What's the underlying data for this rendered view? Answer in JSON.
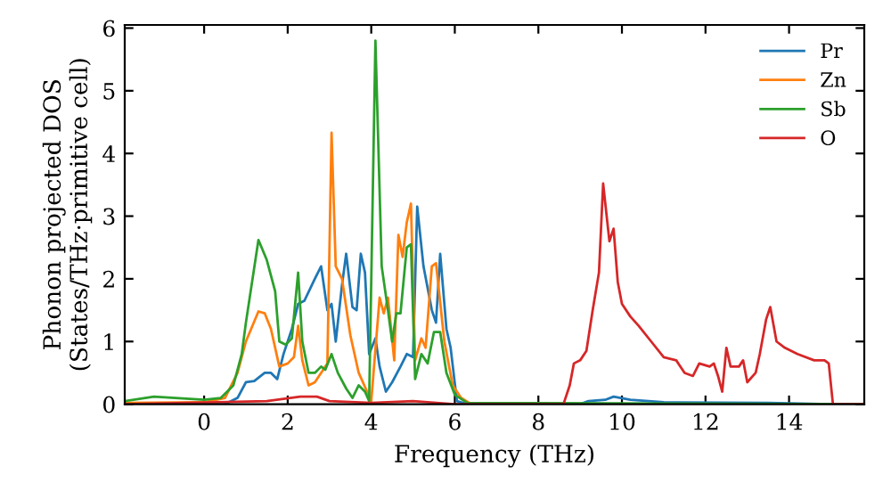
{
  "chart_data": {
    "type": "line",
    "xlabel": "Frequency (THz)",
    "ylabel": "Phonon projected DOS\n(States/THz·primitive cell)",
    "xlim": [
      -1.9,
      15.8
    ],
    "ylim": [
      0,
      6.05
    ],
    "xticks": [
      0,
      2,
      4,
      6,
      8,
      10,
      12,
      14
    ],
    "yticks": [
      0,
      1,
      2,
      3,
      4,
      5,
      6
    ],
    "grid": false,
    "legend": "top right",
    "marker": "none",
    "line_style": "solid",
    "series": [
      {
        "name": "Pr",
        "color": "#1f77b4",
        "x": [
          -1.9,
          0.5,
          0.8,
          1.0,
          1.2,
          1.45,
          1.6,
          1.75,
          1.9,
          2.1,
          2.25,
          2.4,
          2.65,
          2.8,
          2.95,
          3.05,
          3.15,
          3.3,
          3.4,
          3.55,
          3.65,
          3.75,
          3.85,
          3.95,
          4.1,
          4.2,
          4.35,
          4.5,
          4.7,
          4.85,
          5.0,
          5.1,
          5.25,
          5.45,
          5.55,
          5.65,
          5.8,
          5.9,
          6.05,
          6.3,
          9.0,
          9.2,
          9.6,
          9.8,
          10.2,
          11.0,
          13.5,
          15.0,
          15.8
        ],
        "values": [
          0,
          0,
          0.1,
          0.35,
          0.37,
          0.5,
          0.5,
          0.4,
          0.8,
          1.2,
          1.6,
          1.65,
          2.0,
          2.2,
          1.5,
          1.6,
          1.0,
          1.9,
          2.4,
          1.55,
          1.5,
          2.4,
          2.1,
          0.8,
          1.05,
          0.6,
          0.2,
          0.35,
          0.6,
          0.8,
          0.75,
          3.15,
          2.2,
          1.5,
          1.3,
          2.4,
          1.2,
          0.9,
          0.05,
          0,
          0,
          0.05,
          0.07,
          0.12,
          0.07,
          0.03,
          0.02,
          0,
          0
        ]
      },
      {
        "name": "Zn",
        "color": "#ff7f0e",
        "x": [
          -1.9,
          0,
          0.5,
          0.8,
          1.0,
          1.3,
          1.45,
          1.6,
          1.8,
          2.0,
          2.15,
          2.25,
          2.35,
          2.5,
          2.65,
          2.85,
          2.95,
          3.05,
          3.15,
          3.3,
          3.5,
          3.7,
          3.9,
          4.0,
          4.2,
          4.3,
          4.4,
          4.55,
          4.65,
          4.75,
          4.85,
          4.95,
          5.05,
          5.2,
          5.3,
          5.45,
          5.55,
          5.75,
          5.95,
          6.15,
          6.4,
          15.8
        ],
        "values": [
          0.02,
          0.03,
          0.1,
          0.5,
          1.0,
          1.48,
          1.45,
          1.2,
          0.6,
          0.65,
          0.75,
          1.25,
          0.7,
          0.3,
          0.35,
          0.55,
          0.65,
          4.33,
          2.2,
          2.0,
          1.1,
          0.5,
          0.2,
          0.05,
          1.7,
          1.45,
          1.7,
          0.7,
          2.7,
          2.35,
          2.9,
          3.2,
          0.7,
          1.05,
          0.9,
          2.2,
          2.25,
          1.0,
          0.3,
          0.1,
          0,
          0
        ]
      },
      {
        "name": "Sb",
        "color": "#2ca02c",
        "x": [
          -1.9,
          -1.2,
          0,
          0.4,
          0.7,
          0.9,
          1.0,
          1.3,
          1.5,
          1.7,
          1.8,
          1.95,
          2.1,
          2.25,
          2.35,
          2.5,
          2.65,
          2.8,
          2.9,
          3.05,
          3.2,
          3.4,
          3.55,
          3.7,
          3.85,
          3.95,
          4.1,
          4.25,
          4.4,
          4.5,
          4.6,
          4.7,
          4.85,
          4.95,
          5.05,
          5.2,
          5.35,
          5.5,
          5.65,
          5.8,
          6.0,
          6.3,
          15.8
        ],
        "values": [
          0.05,
          0.12,
          0.07,
          0.1,
          0.3,
          0.8,
          1.3,
          2.62,
          2.3,
          1.8,
          1.0,
          0.95,
          1.05,
          2.1,
          1.0,
          0.5,
          0.5,
          0.6,
          0.55,
          0.8,
          0.5,
          0.25,
          0.1,
          0.3,
          0.2,
          0.05,
          5.8,
          2.2,
          1.5,
          1.0,
          1.45,
          1.45,
          2.5,
          2.55,
          0.4,
          0.8,
          0.65,
          1.15,
          1.15,
          0.5,
          0.15,
          0.02,
          0
        ]
      },
      {
        "name": "O",
        "color": "#d62728",
        "x": [
          -1.9,
          1.5,
          2.3,
          2.7,
          3.0,
          4.0,
          5.0,
          6.0,
          8.6,
          8.75,
          8.85,
          9.0,
          9.15,
          9.3,
          9.45,
          9.55,
          9.7,
          9.8,
          9.9,
          10.0,
          10.2,
          10.4,
          10.7,
          11.0,
          11.3,
          11.5,
          11.7,
          11.85,
          12.1,
          12.2,
          12.3,
          12.4,
          12.5,
          12.6,
          12.8,
          12.9,
          13.0,
          13.2,
          13.3,
          13.45,
          13.55,
          13.7,
          13.9,
          14.2,
          14.6,
          14.85,
          14.95,
          15.05,
          15.8
        ],
        "values": [
          0,
          0.05,
          0.12,
          0.12,
          0.05,
          0.02,
          0.05,
          0,
          0,
          0.3,
          0.65,
          0.7,
          0.85,
          1.5,
          2.1,
          3.52,
          2.6,
          2.8,
          1.95,
          1.6,
          1.4,
          1.25,
          1.0,
          0.75,
          0.7,
          0.5,
          0.45,
          0.65,
          0.6,
          0.65,
          0.45,
          0.2,
          0.9,
          0.6,
          0.6,
          0.7,
          0.35,
          0.5,
          0.8,
          1.35,
          1.55,
          1.0,
          0.9,
          0.8,
          0.7,
          0.7,
          0.65,
          0,
          0
        ]
      }
    ]
  }
}
